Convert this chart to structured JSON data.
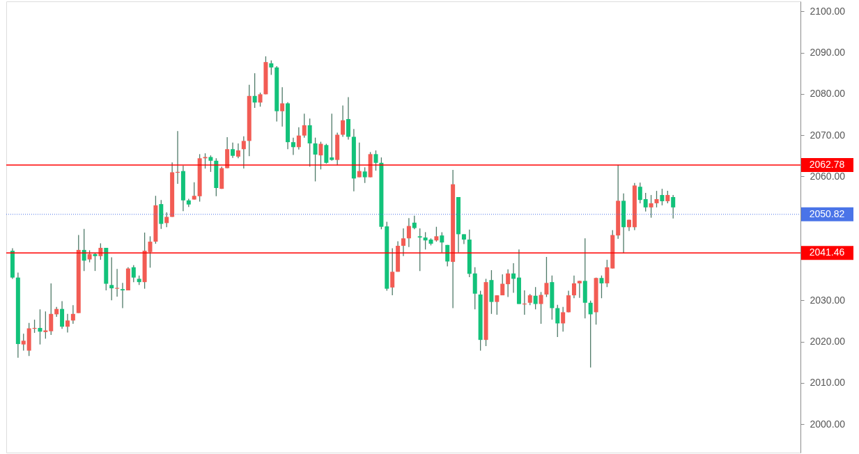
{
  "chart_data": {
    "type": "candlestick",
    "categories": [
      null,
      null,
      null,
      null,
      null,
      null,
      null,
      null,
      null,
      null,
      null,
      null,
      null,
      null,
      null,
      null,
      null,
      null,
      null,
      null,
      null,
      null,
      null,
      null,
      null,
      null,
      null,
      null,
      null,
      null,
      null,
      null,
      null,
      null,
      null,
      null,
      null,
      null,
      null,
      null,
      null,
      null,
      null,
      null,
      null,
      null,
      null,
      null,
      null,
      null,
      null,
      null,
      null,
      null,
      null,
      null,
      null,
      null,
      null,
      null,
      null,
      null,
      null,
      null,
      null,
      null,
      null,
      null,
      null,
      null,
      null,
      null,
      null,
      null,
      null,
      null,
      null,
      null,
      null,
      null,
      null,
      null,
      null,
      null,
      null,
      null,
      null,
      null,
      null,
      null,
      null,
      null,
      null,
      null,
      null,
      null,
      null,
      null,
      null,
      null,
      null,
      null,
      null,
      null,
      null,
      null,
      null,
      null,
      null,
      null,
      null,
      null,
      null,
      null,
      null,
      null,
      null,
      null,
      null,
      null,
      null,
      null,
      null,
      null,
      null,
      null,
      null,
      null,
      null,
      null,
      null,
      null,
      null,
      null,
      null,
      null,
      null,
      null,
      null,
      null,
      null,
      null,
      null
    ],
    "ohlc": [
      [
        2042.0,
        2042.6,
        2035.2,
        2035.5
      ],
      [
        2035.5,
        2036.7,
        2016.1,
        2019.4
      ],
      [
        2019.3,
        2021.9,
        2017.8,
        2020.2
      ],
      [
        2017.8,
        2024.5,
        2016.5,
        2023.2
      ],
      [
        2023.1,
        2025.3,
        2022.1,
        2023.3
      ],
      [
        2023.3,
        2027.8,
        2019.3,
        2022.4
      ],
      [
        2022.3,
        2027.3,
        2020.7,
        2022.7
      ],
      [
        2022.5,
        2034.1,
        2021.6,
        2026.7
      ],
      [
        2026.6,
        2028.4,
        2026.0,
        2027.9
      ],
      [
        2027.9,
        2029.8,
        2023.1,
        2023.6
      ],
      [
        2023.6,
        2026.7,
        2022.2,
        2025.1
      ],
      [
        2025.1,
        2028.8,
        2024.3,
        2026.7
      ],
      [
        2026.9,
        2045.8,
        2026.9,
        2042.2
      ],
      [
        2042.2,
        2047.3,
        2037.1,
        2039.6
      ],
      [
        2039.9,
        2042.1,
        2039.2,
        2041.2
      ],
      [
        2041.2,
        2041.5,
        2037.1,
        2040.7
      ],
      [
        2040.7,
        2043.8,
        2039.8,
        2042.7
      ],
      [
        2042.7,
        2042.7,
        2032.4,
        2034.0
      ],
      [
        2033.7,
        2040.4,
        2030.0,
        2032.9
      ],
      [
        2032.8,
        2037.6,
        2030.9,
        2033.0
      ],
      [
        2032.7,
        2034.2,
        2028.1,
        2032.4
      ],
      [
        2032.4,
        2038.0,
        2032.4,
        2037.7
      ],
      [
        2038.0,
        2038.5,
        2034.4,
        2035.5
      ],
      [
        2035.2,
        2036.0,
        2033.7,
        2034.4
      ],
      [
        2034.4,
        2046.4,
        2032.8,
        2042.0
      ],
      [
        2041.7,
        2045.5,
        2037.9,
        2044.2
      ],
      [
        2044.2,
        2055.3,
        2043.7,
        2053.0
      ],
      [
        2053.3,
        2054.3,
        2047.3,
        2048.5
      ],
      [
        2048.7,
        2051.3,
        2047.7,
        2050.2
      ],
      [
        2050.2,
        2063.4,
        2050.2,
        2061.0
      ],
      [
        2060.9,
        2071.0,
        2058.2,
        2061.1
      ],
      [
        2061.3,
        2062.6,
        2051.6,
        2054.2
      ],
      [
        2054.2,
        2054.6,
        2052.6,
        2053.2
      ],
      [
        2054.4,
        2058.6,
        2054.4,
        2055.3
      ],
      [
        2055.2,
        2065.4,
        2053.9,
        2064.4
      ],
      [
        2064.4,
        2065.6,
        2061.9,
        2064.7
      ],
      [
        2064.7,
        2065.1,
        2061.1,
        2063.8
      ],
      [
        2063.8,
        2064.4,
        2055.2,
        2057.2
      ],
      [
        2057.0,
        2062.4,
        2057.0,
        2062.0
      ],
      [
        2062.0,
        2069.5,
        2062.0,
        2066.6
      ],
      [
        2066.6,
        2068.2,
        2064.5,
        2065.0
      ],
      [
        2064.8,
        2068.0,
        2064.4,
        2066.3
      ],
      [
        2066.6,
        2069.7,
        2061.9,
        2068.6
      ],
      [
        2068.6,
        2082.2,
        2064.9,
        2079.5
      ],
      [
        2079.5,
        2085.0,
        2076.6,
        2077.9
      ],
      [
        2077.9,
        2080.3,
        2076.9,
        2079.9
      ],
      [
        2079.9,
        2089.1,
        2079.9,
        2087.7
      ],
      [
        2087.4,
        2088.1,
        2084.6,
        2086.4
      ],
      [
        2086.4,
        2086.7,
        2073.3,
        2075.8
      ],
      [
        2075.8,
        2081.6,
        2072.1,
        2077.7
      ],
      [
        2077.7,
        2078.0,
        2066.6,
        2068.3
      ],
      [
        2068.3,
        2069.4,
        2065.2,
        2067.1
      ],
      [
        2067.1,
        2071.9,
        2066.5,
        2069.9
      ],
      [
        2069.9,
        2075.2,
        2069.4,
        2072.4
      ],
      [
        2072.4,
        2074.0,
        2062.4,
        2068.0
      ],
      [
        2068.0,
        2069.4,
        2058.8,
        2065.3
      ],
      [
        2065.1,
        2068.4,
        2061.7,
        2067.9
      ],
      [
        2067.6,
        2067.9,
        2063.1,
        2063.3
      ],
      [
        2064.6,
        2075.2,
        2063.8,
        2064.0
      ],
      [
        2064.0,
        2070.6,
        2062.7,
        2070.1
      ],
      [
        2070.1,
        2077.2,
        2069.6,
        2073.6
      ],
      [
        2073.9,
        2079.2,
        2068.9,
        2069.6
      ],
      [
        2069.6,
        2071.5,
        2056.4,
        2059.5
      ],
      [
        2059.8,
        2068.2,
        2059.8,
        2061.3
      ],
      [
        2061.2,
        2062.2,
        2058.4,
        2059.8
      ],
      [
        2059.8,
        2065.9,
        2059.8,
        2065.4
      ],
      [
        2065.4,
        2066.3,
        2061.4,
        2063.3
      ],
      [
        2063.3,
        2064.6,
        2047.2,
        2047.8
      ],
      [
        2047.9,
        2049.0,
        2032.3,
        2032.8
      ],
      [
        2033.1,
        2042.6,
        2031.2,
        2036.9
      ],
      [
        2036.9,
        2044.3,
        2036.9,
        2043.2
      ],
      [
        2043.2,
        2047.4,
        2040.7,
        2045.0
      ],
      [
        2045.0,
        2049.9,
        2042.9,
        2048.0
      ],
      [
        2048.8,
        2050.5,
        2047.2,
        2047.5
      ],
      [
        2045.5,
        2047.4,
        2037.1,
        2045.2
      ],
      [
        2045.2,
        2046.5,
        2042.3,
        2044.5
      ],
      [
        2044.7,
        2045.0,
        2043.3,
        2043.7
      ],
      [
        2044.5,
        2047.8,
        2044.2,
        2045.5
      ],
      [
        2045.7,
        2046.5,
        2041.6,
        2044.0
      ],
      [
        2043.4,
        2043.4,
        2038.2,
        2039.4
      ],
      [
        2039.3,
        2061.6,
        2028.1,
        2058.1
      ],
      [
        2055.0,
        2055.0,
        2041.6,
        2046.0
      ],
      [
        2046.0,
        2046.0,
        2043.6,
        2044.7
      ],
      [
        2044.7,
        2047.1,
        2035.6,
        2036.4
      ],
      [
        2036.5,
        2038.0,
        2027.8,
        2031.6
      ],
      [
        2031.4,
        2032.3,
        2017.8,
        2020.4
      ],
      [
        2020.4,
        2035.2,
        2018.9,
        2034.4
      ],
      [
        2034.9,
        2037.3,
        2026.7,
        2029.6
      ],
      [
        2029.6,
        2031.2,
        2026.5,
        2031.2
      ],
      [
        2031.2,
        2036.3,
        2031.2,
        2034.0
      ],
      [
        2033.9,
        2037.5,
        2030.8,
        2036.5
      ],
      [
        2036.5,
        2039.0,
        2031.8,
        2035.2
      ],
      [
        2035.5,
        2042.3,
        2029.1,
        2029.1
      ],
      [
        2029.0,
        2032.4,
        2026.5,
        2029.2
      ],
      [
        2029.4,
        2031.5,
        2028.8,
        2031.2
      ],
      [
        2031.1,
        2033.2,
        2027.8,
        2029.1
      ],
      [
        2029.1,
        2032.0,
        2024.3,
        2031.3
      ],
      [
        2031.4,
        2040.5,
        2030.8,
        2034.2
      ],
      [
        2034.4,
        2036.0,
        2025.3,
        2028.1
      ],
      [
        2028.1,
        2028.9,
        2021.1,
        2024.4
      ],
      [
        2024.4,
        2028.4,
        2022.4,
        2027.1
      ],
      [
        2027.1,
        2032.3,
        2027.1,
        2031.2
      ],
      [
        2031.2,
        2036.0,
        2030.5,
        2034.1
      ],
      [
        2034.1,
        2034.7,
        2030.6,
        2034.7
      ],
      [
        2034.7,
        2045.0,
        2025.6,
        2029.4
      ],
      [
        2029.4,
        2029.9,
        2013.7,
        2026.6
      ],
      [
        2027.1,
        2035.5,
        2024.1,
        2035.4
      ],
      [
        2035.4,
        2036.0,
        2030.5,
        2034.1
      ],
      [
        2034.1,
        2039.8,
        2033.2,
        2038.0
      ],
      [
        2037.7,
        2047.0,
        2037.7,
        2045.8
      ],
      [
        2045.7,
        2062.78,
        2044.9,
        2054.1
      ],
      [
        2054.1,
        2055.9,
        2041.46,
        2047.7
      ],
      [
        2047.7,
        2049.5,
        2046.8,
        2049.5
      ],
      [
        2047.7,
        2058.4,
        2047.0,
        2057.8
      ],
      [
        2057.5,
        2058.5,
        2053.5,
        2054.3
      ],
      [
        2054.5,
        2056.0,
        2051.5,
        2052.5
      ],
      [
        2052.5,
        2055.5,
        2050.0,
        2053.5
      ],
      [
        2053.5,
        2056.5,
        2052.5,
        2054.5
      ],
      [
        2055.5,
        2057.0,
        2053.0,
        2054.0
      ],
      [
        2054.0,
        2056.5,
        2053.5,
        2055.5
      ],
      [
        2055.0,
        2055.5,
        2049.8,
        2052.5
      ],
      null,
      null,
      null,
      null,
      null,
      null,
      null,
      null,
      null,
      null,
      null,
      null,
      null,
      null,
      null,
      null,
      null,
      null,
      null,
      null,
      null,
      null
    ],
    "colors": [
      "#12c27a",
      "#12c27a",
      "#f25c54",
      "#f25c54",
      "#f25c54",
      "#12c27a",
      "#f25c54",
      "#f25c54",
      "#f25c54",
      "#12c27a",
      "#f25c54",
      "#f25c54",
      "#f25c54",
      "#12c27a",
      "#f25c54",
      "#12c27a",
      "#f25c54",
      "#12c27a",
      "#12c27a",
      "#f25c54",
      "#12c27a",
      "#f25c54",
      "#12c27a",
      "#12c27a",
      "#f25c54",
      "#f25c54",
      "#f25c54",
      "#12c27a",
      "#f25c54",
      "#f25c54",
      "#f25c54",
      "#12c27a",
      "#12c27a",
      "#f25c54",
      "#f25c54",
      "#f25c54",
      "#12c27a",
      "#12c27a",
      "#f25c54",
      "#f25c54",
      "#12c27a",
      "#f25c54",
      "#f25c54",
      "#f25c54",
      "#12c27a",
      "#f25c54",
      "#f25c54",
      "#12c27a",
      "#12c27a",
      "#f25c54",
      "#12c27a",
      "#12c27a",
      "#f25c54",
      "#f25c54",
      "#12c27a",
      "#12c27a",
      "#f25c54",
      "#12c27a",
      "#12c27a",
      "#f25c54",
      "#f25c54",
      "#12c27a",
      "#12c27a",
      "#f25c54",
      "#12c27a",
      "#f25c54",
      "#12c27a",
      "#12c27a",
      "#12c27a",
      "#f25c54",
      "#f25c54",
      "#f25c54",
      "#f25c54",
      "#12c27a",
      "#12c27a",
      "#12c27a",
      "#12c27a",
      "#f25c54",
      "#12c27a",
      "#12c27a",
      "#f25c54",
      "#12c27a",
      "#12c27a",
      "#12c27a",
      "#12c27a",
      "#12c27a",
      "#f25c54",
      "#12c27a",
      "#f25c54",
      "#f25c54",
      "#f25c54",
      "#12c27a",
      "#12c27a",
      "#f25c54",
      "#f25c54",
      "#12c27a",
      "#f25c54",
      "#f25c54",
      "#12c27a",
      "#12c27a",
      "#f25c54",
      "#f25c54",
      "#f25c54",
      "#f25c54",
      "#12c27a",
      "#12c27a",
      "#f25c54",
      "#12c27a",
      "#f25c54",
      "#f25c54",
      "#f25c54",
      "#12c27a",
      "#f25c54",
      "#f25c54",
      "#12c27a",
      "#12c27a",
      "#f25c54",
      "#f25c54",
      "#12c27a",
      "#f25c54",
      "#12c27a",
      null,
      null,
      null,
      null,
      null,
      null,
      null,
      null,
      null,
      null,
      null,
      null,
      null,
      null,
      null,
      null,
      null,
      null,
      null,
      null,
      null,
      null
    ],
    "ylim": [
      1993.1,
      2102.4
    ],
    "yticks": [
      {
        "value": 2000,
        "label": "2000.00"
      },
      {
        "value": 2010,
        "label": "2010.00"
      },
      {
        "value": 2020,
        "label": "2020.00"
      },
      {
        "value": 2030,
        "label": "2030.00"
      },
      {
        "value": 2040,
        "label": null
      },
      {
        "value": 2050,
        "label": null
      },
      {
        "value": 2060,
        "label": "2060.00"
      },
      {
        "value": 2070,
        "label": "2070.00"
      },
      {
        "value": 2080,
        "label": "2080.00"
      },
      {
        "value": 2090,
        "label": "2090.00"
      },
      {
        "value": 2100,
        "label": "2100.00"
      }
    ],
    "ref_lines": [
      {
        "axis": "y",
        "value": 2062.78,
        "label": "2062.78",
        "color": "#ff0000",
        "line_style": "solid"
      },
      {
        "axis": "y",
        "value": 2050.82,
        "label": "2050.82",
        "color": "#4a74e8",
        "line_style": "dotted"
      },
      {
        "axis": "y",
        "value": 2041.46,
        "label": "2041.46",
        "color": "#ff0000",
        "line_style": "solid"
      }
    ],
    "grid": false,
    "tick_labels": "y"
  }
}
